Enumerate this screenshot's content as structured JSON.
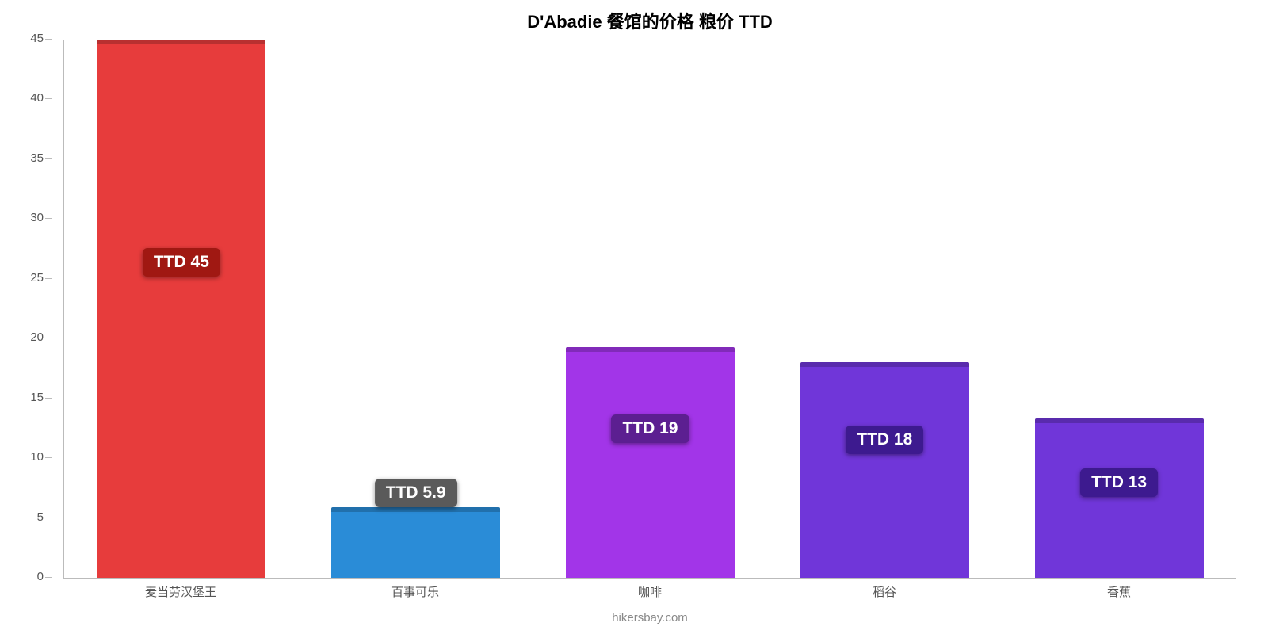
{
  "chart": {
    "type": "bar",
    "title": "D'Abadie 餐馆的价格 粮价 TTD",
    "title_fontsize": 22,
    "title_color": "#000000",
    "attribution": "hikersbay.com",
    "attribution_color": "#888888",
    "background_color": "#ffffff",
    "axis_color": "#bbbbbb",
    "tick_label_color": "#555555",
    "tick_label_fontsize": 15,
    "ylim": [
      0,
      45
    ],
    "ytick_step": 5,
    "yticks": [
      0,
      5,
      10,
      15,
      20,
      25,
      30,
      35,
      40,
      45
    ],
    "bar_width_pct": 72,
    "value_label_fontsize": 21,
    "value_label_text_color": "#ffffff",
    "value_label_radius": 6,
    "items": [
      {
        "category": "麦当劳汉堡王",
        "value": 45,
        "display": "TTD 45",
        "bar_color": "#e73c3c",
        "label_bg": "#a01812",
        "label_y_offset_pct": 56
      },
      {
        "category": "百事可乐",
        "value": 5.9,
        "display": "TTD 5.9",
        "bar_color": "#2a8cd7",
        "label_bg": "#5a5a5a",
        "label_y_offset_pct": 13.1
      },
      {
        "category": "咖啡",
        "value": 19.3,
        "display": "TTD 19",
        "bar_color": "#a235e8",
        "label_bg": "#5c1f91",
        "label_y_offset_pct": 25
      },
      {
        "category": "稻谷",
        "value": 18,
        "display": "TTD 18",
        "bar_color": "#7036d9",
        "label_bg": "#3d1a8f",
        "label_y_offset_pct": 23
      },
      {
        "category": "香蕉",
        "value": 13.3,
        "display": "TTD 13",
        "bar_color": "#7036d9",
        "label_bg": "#3d1a8f",
        "label_y_offset_pct": 15
      }
    ]
  }
}
